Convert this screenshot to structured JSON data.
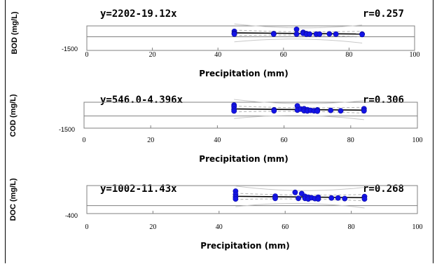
{
  "chart_data": [
    {
      "type": "scatter",
      "ylabel": "BOD (mg/L)",
      "xlabel": "Precipitation (mm)",
      "equation": "y=2202-19.12x",
      "r_label": "r=0.257",
      "y_min_label": "-1500",
      "xlim": [
        0,
        100
      ],
      "x_ticks": [
        "0",
        "20",
        "40",
        "60",
        "80",
        "100"
      ],
      "points": [
        [
          45,
          600
        ],
        [
          45,
          400
        ],
        [
          45,
          350
        ],
        [
          45,
          300
        ],
        [
          57,
          350
        ],
        [
          57,
          300
        ],
        [
          64,
          820
        ],
        [
          64,
          300
        ],
        [
          66,
          500
        ],
        [
          66,
          380
        ],
        [
          67,
          350
        ],
        [
          67,
          280
        ],
        [
          68,
          300
        ],
        [
          70,
          300
        ],
        [
          71,
          300
        ],
        [
          74,
          320
        ],
        [
          76,
          300
        ],
        [
          84,
          300
        ],
        [
          84,
          250
        ]
      ],
      "fit": {
        "intercept": 2202,
        "slope": -19.12
      }
    },
    {
      "type": "scatter",
      "ylabel": "COD (mg/L)",
      "xlabel": "Precipitation (mm)",
      "equation": "y=546.0-4.396x",
      "r_label": "r=0.306",
      "y_min_label": "-1500",
      "xlim": [
        0,
        100
      ],
      "x_ticks": [
        "0",
        "20",
        "40",
        "60",
        "80",
        "100"
      ],
      "points": [
        [
          45,
          1350
        ],
        [
          45,
          1150
        ],
        [
          45,
          820
        ],
        [
          45,
          620
        ],
        [
          57,
          760
        ],
        [
          57,
          640
        ],
        [
          64,
          1250
        ],
        [
          64,
          720
        ],
        [
          65,
          860
        ],
        [
          66,
          900
        ],
        [
          66,
          650
        ],
        [
          67,
          780
        ],
        [
          67,
          620
        ],
        [
          68,
          700
        ],
        [
          69,
          640
        ],
        [
          70,
          760
        ],
        [
          70,
          600
        ],
        [
          74,
          700
        ],
        [
          77,
          640
        ],
        [
          84,
          900
        ],
        [
          84,
          640
        ]
      ],
      "fit": {
        "intercept": 546.0,
        "slope": -4.396
      }
    },
    {
      "type": "scatter",
      "ylabel": "DOC (mg/L)",
      "xlabel": "Precipitation (mm)",
      "equation": "y=1002-11.43x",
      "r_label": "r=0.268",
      "y_min_label": "-400",
      "xlim": [
        0,
        100
      ],
      "x_ticks": [
        "0",
        "20",
        "40",
        "60",
        "80",
        "100"
      ],
      "points": [
        [
          45,
          720
        ],
        [
          45,
          560
        ],
        [
          45,
          430
        ],
        [
          45,
          330
        ],
        [
          57,
          470
        ],
        [
          57,
          360
        ],
        [
          63,
          660
        ],
        [
          64,
          360
        ],
        [
          65,
          600
        ],
        [
          66,
          460
        ],
        [
          66,
          360
        ],
        [
          67,
          420
        ],
        [
          67,
          330
        ],
        [
          68,
          390
        ],
        [
          69,
          350
        ],
        [
          70,
          420
        ],
        [
          70,
          330
        ],
        [
          74,
          380
        ],
        [
          76,
          380
        ],
        [
          78,
          350
        ],
        [
          84,
          450
        ],
        [
          84,
          330
        ]
      ],
      "fit": {
        "intercept": 1002,
        "slope": -11.43
      }
    }
  ],
  "colors": {
    "points": "#1414e6",
    "fit_line": "#000000",
    "confidence": "#b0b0b0",
    "prediction": "#c8c8c8",
    "axis": "#808080"
  }
}
